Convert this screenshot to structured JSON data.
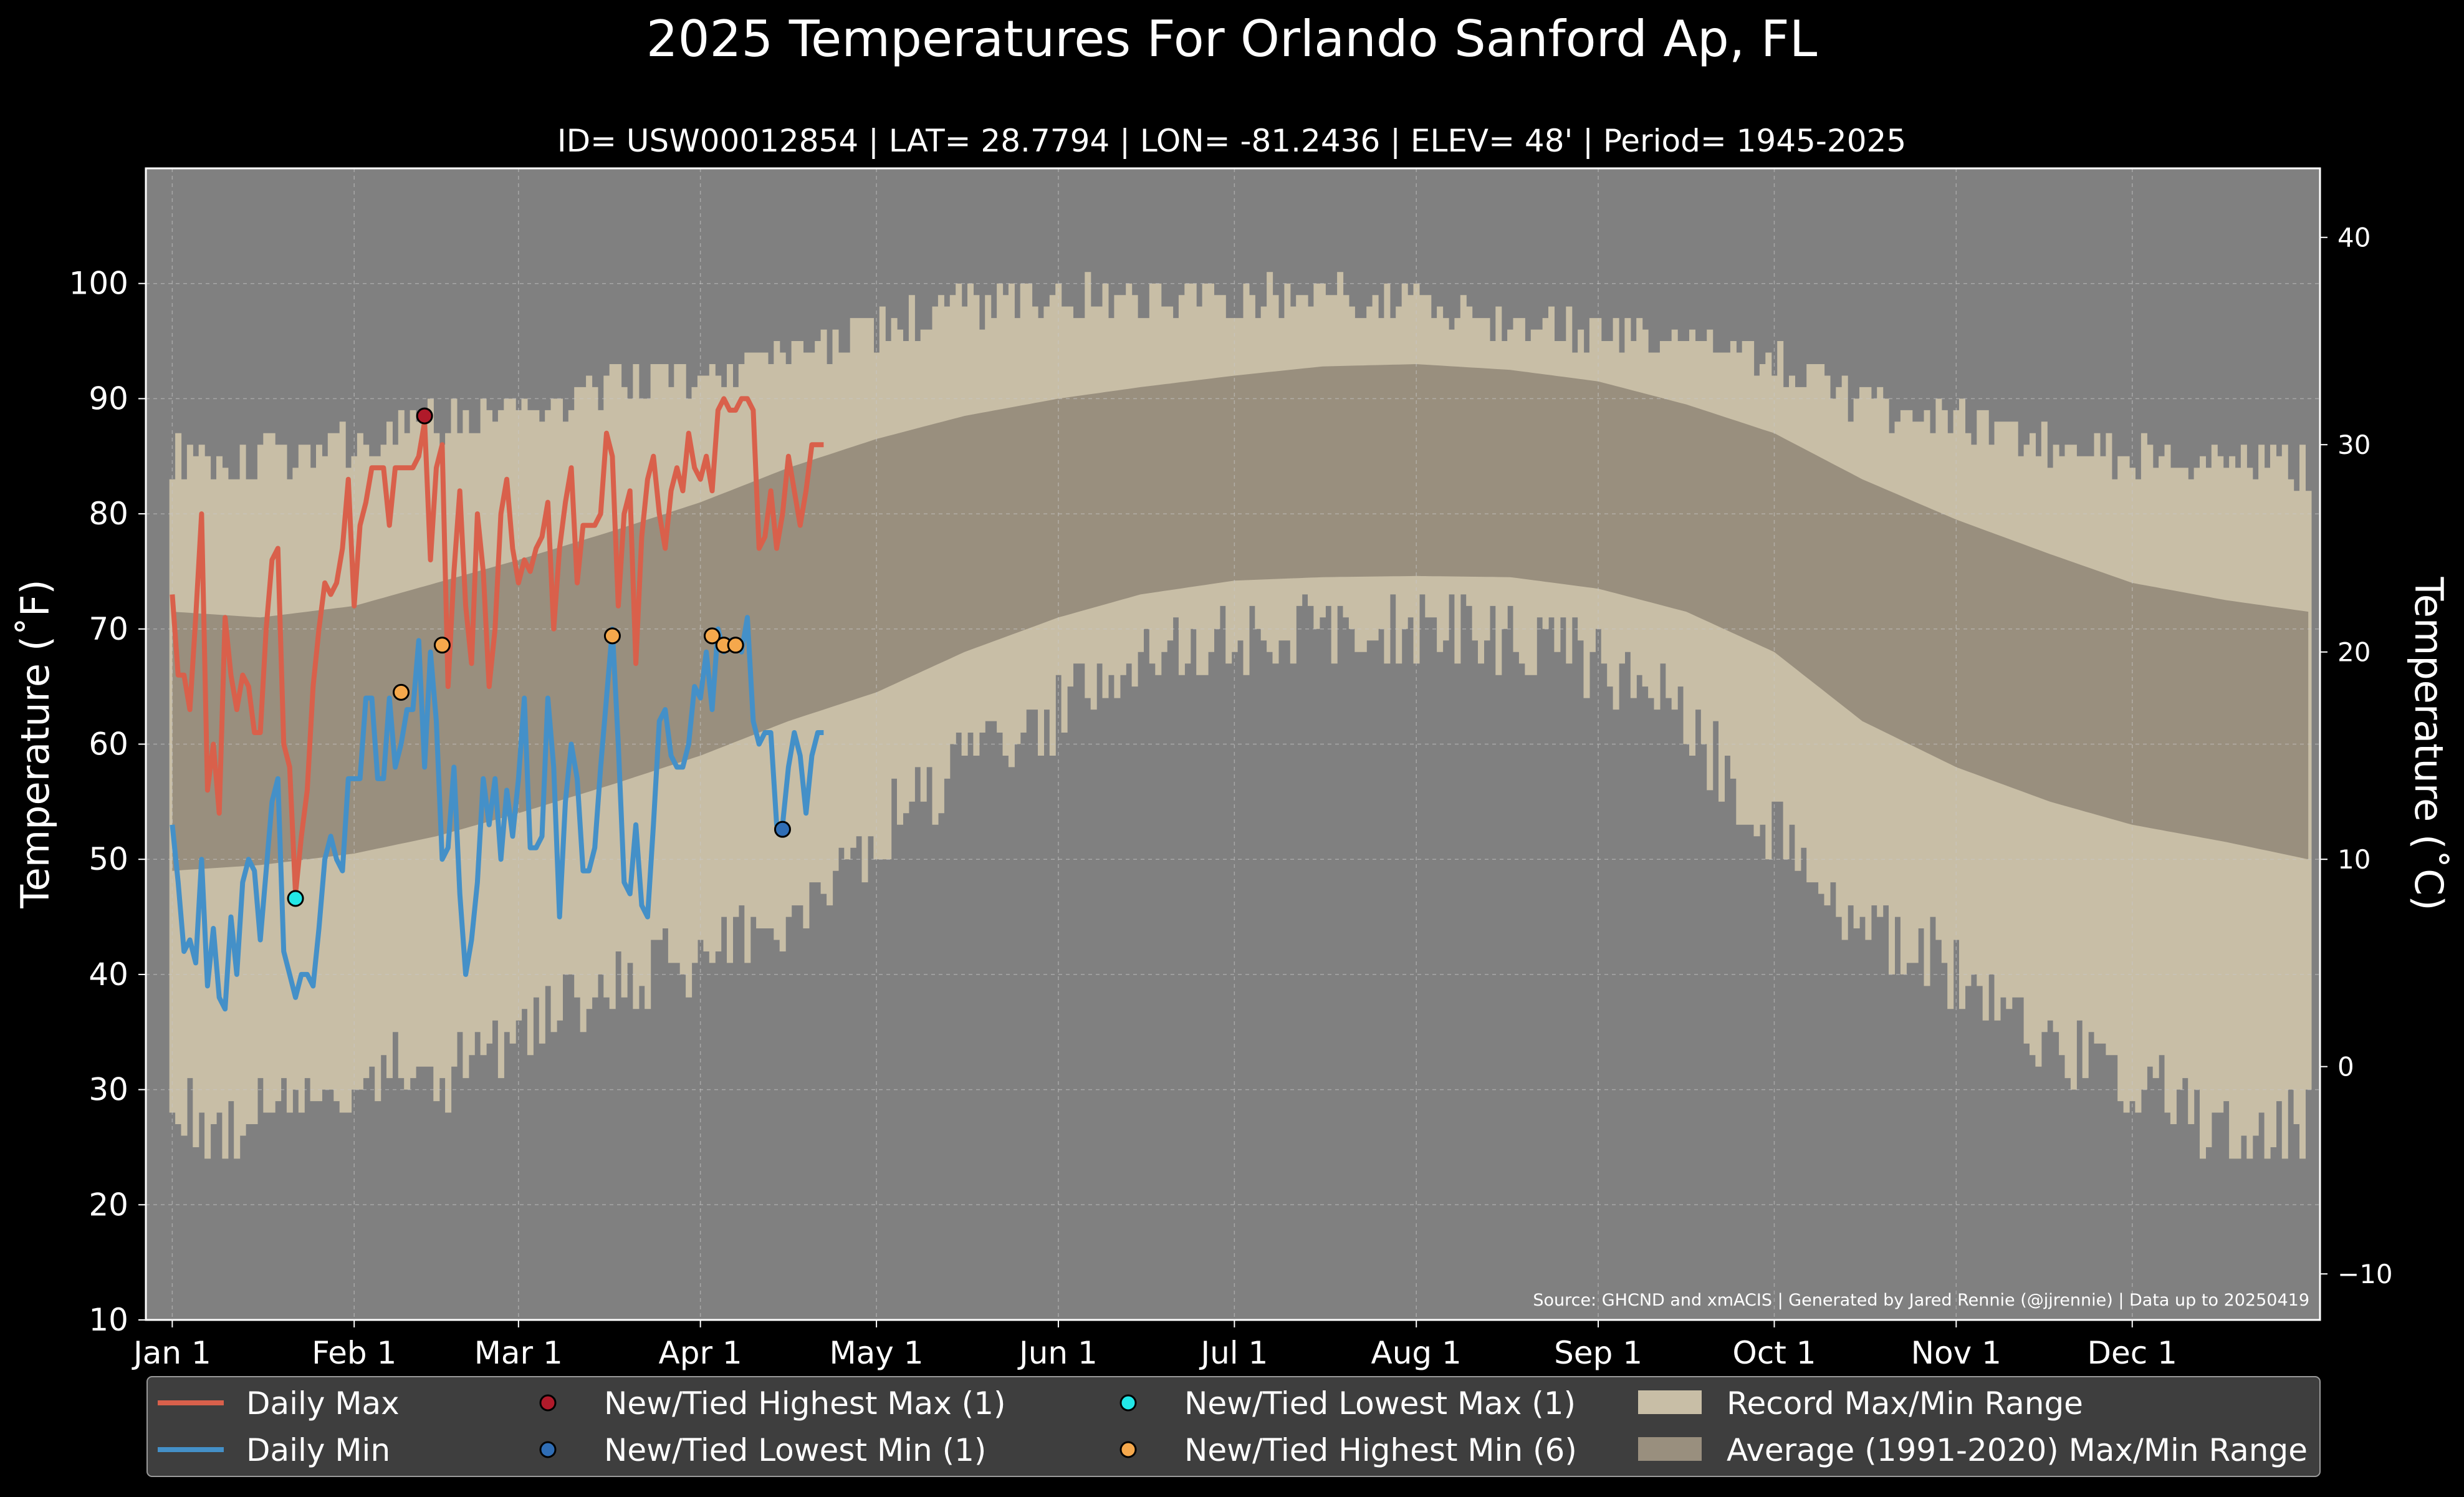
{
  "chart_data": {
    "type": "line",
    "title": "2025 Temperatures For Orlando Sanford Ap, FL",
    "subtitle": "ID= USW00012854 | LAT= 28.7794 | LON= -81.2436 | ELEV= 48' | Period= 1945-2025",
    "ylabel": "Temperature ($^\\circ$F)",
    "ylabel_display": "Temperature (˚F)",
    "ylabel_right": "Temperature (˚C)",
    "source": "Source: GHCND and xmACIS | Generated by Jared Rennie (@jjrennie) | Data up to 20250419",
    "ylim": [
      10,
      110
    ],
    "ylim_right_c": [
      -12.22,
      43.33
    ],
    "yticks": [
      10,
      20,
      30,
      40,
      50,
      60,
      70,
      80,
      90,
      100
    ],
    "yticks_right": [
      -10,
      0,
      10,
      20,
      30,
      40
    ],
    "x_ticks": [
      {
        "label": "Jan 1",
        "day": 0
      },
      {
        "label": "Feb 1",
        "day": 31
      },
      {
        "label": "Mar 1",
        "day": 59
      },
      {
        "label": "Apr 1",
        "day": 90
      },
      {
        "label": "May 1",
        "day": 120
      },
      {
        "label": "Jun 1",
        "day": 151
      },
      {
        "label": "Jul 1",
        "day": 181
      },
      {
        "label": "Aug 1",
        "day": 212
      },
      {
        "label": "Sep 1",
        "day": 243
      },
      {
        "label": "Oct 1",
        "day": 273
      },
      {
        "label": "Nov 1",
        "day": 304
      },
      {
        "label": "Dec 1",
        "day": 334
      }
    ],
    "xlim_days": [
      -4.5,
      366
    ],
    "grid": true,
    "colors": {
      "background": "#000000",
      "plot_bg": "#808080",
      "record_band": "#c8bea6",
      "normal_band": "#998f7e",
      "daily_max": "#d9604b",
      "daily_min": "#4490c8",
      "highest_max": "#b01a2a",
      "lowest_min": "#2f6db5",
      "lowest_max": "#22e7e7",
      "highest_min": "#f5a84c"
    },
    "record_max_anchors": [
      {
        "day": 0,
        "value": 85
      },
      {
        "day": 10,
        "value": 84
      },
      {
        "day": 20,
        "value": 85
      },
      {
        "day": 31,
        "value": 86
      },
      {
        "day": 45,
        "value": 88
      },
      {
        "day": 59,
        "value": 89
      },
      {
        "day": 75,
        "value": 91
      },
      {
        "day": 90,
        "value": 92
      },
      {
        "day": 105,
        "value": 94
      },
      {
        "day": 120,
        "value": 96
      },
      {
        "day": 135,
        "value": 98
      },
      {
        "day": 151,
        "value": 99
      },
      {
        "day": 165,
        "value": 99
      },
      {
        "day": 181,
        "value": 99
      },
      {
        "day": 196,
        "value": 99
      },
      {
        "day": 212,
        "value": 98
      },
      {
        "day": 228,
        "value": 97
      },
      {
        "day": 243,
        "value": 96
      },
      {
        "day": 258,
        "value": 95
      },
      {
        "day": 273,
        "value": 93
      },
      {
        "day": 288,
        "value": 90
      },
      {
        "day": 304,
        "value": 88
      },
      {
        "day": 320,
        "value": 86
      },
      {
        "day": 334,
        "value": 85
      },
      {
        "day": 350,
        "value": 85
      },
      {
        "day": 364,
        "value": 84
      }
    ],
    "record_min_anchors": [
      {
        "day": 0,
        "value": 29
      },
      {
        "day": 10,
        "value": 27
      },
      {
        "day": 20,
        "value": 28
      },
      {
        "day": 31,
        "value": 32
      },
      {
        "day": 45,
        "value": 31
      },
      {
        "day": 59,
        "value": 35
      },
      {
        "day": 75,
        "value": 38
      },
      {
        "day": 90,
        "value": 42
      },
      {
        "day": 105,
        "value": 45
      },
      {
        "day": 120,
        "value": 52
      },
      {
        "day": 135,
        "value": 58
      },
      {
        "day": 151,
        "value": 63
      },
      {
        "day": 165,
        "value": 67
      },
      {
        "day": 181,
        "value": 69
      },
      {
        "day": 196,
        "value": 70
      },
      {
        "day": 212,
        "value": 70
      },
      {
        "day": 228,
        "value": 69
      },
      {
        "day": 243,
        "value": 67
      },
      {
        "day": 258,
        "value": 62
      },
      {
        "day": 273,
        "value": 52
      },
      {
        "day": 288,
        "value": 45
      },
      {
        "day": 304,
        "value": 40
      },
      {
        "day": 320,
        "value": 34
      },
      {
        "day": 334,
        "value": 30
      },
      {
        "day": 350,
        "value": 27
      },
      {
        "day": 364,
        "value": 27
      }
    ],
    "normal_max_anchors": [
      {
        "day": 0,
        "value": 71.5
      },
      {
        "day": 15,
        "value": 71
      },
      {
        "day": 31,
        "value": 72
      },
      {
        "day": 45,
        "value": 74
      },
      {
        "day": 59,
        "value": 76
      },
      {
        "day": 75,
        "value": 78.5
      },
      {
        "day": 90,
        "value": 81
      },
      {
        "day": 105,
        "value": 84
      },
      {
        "day": 120,
        "value": 86.5
      },
      {
        "day": 135,
        "value": 88.5
      },
      {
        "day": 151,
        "value": 90
      },
      {
        "day": 165,
        "value": 91
      },
      {
        "day": 181,
        "value": 92
      },
      {
        "day": 196,
        "value": 92.8
      },
      {
        "day": 212,
        "value": 93
      },
      {
        "day": 228,
        "value": 92.5
      },
      {
        "day": 243,
        "value": 91.5
      },
      {
        "day": 258,
        "value": 89.5
      },
      {
        "day": 273,
        "value": 87
      },
      {
        "day": 288,
        "value": 83
      },
      {
        "day": 304,
        "value": 79.5
      },
      {
        "day": 320,
        "value": 76.5
      },
      {
        "day": 334,
        "value": 74
      },
      {
        "day": 350,
        "value": 72.5
      },
      {
        "day": 364,
        "value": 71.5
      }
    ],
    "normal_min_anchors": [
      {
        "day": 0,
        "value": 49
      },
      {
        "day": 15,
        "value": 49.5
      },
      {
        "day": 31,
        "value": 50.5
      },
      {
        "day": 45,
        "value": 52
      },
      {
        "day": 59,
        "value": 54
      },
      {
        "day": 75,
        "value": 56.5
      },
      {
        "day": 90,
        "value": 59
      },
      {
        "day": 105,
        "value": 62
      },
      {
        "day": 120,
        "value": 64.5
      },
      {
        "day": 135,
        "value": 68
      },
      {
        "day": 151,
        "value": 71
      },
      {
        "day": 165,
        "value": 73
      },
      {
        "day": 181,
        "value": 74.2
      },
      {
        "day": 196,
        "value": 74.5
      },
      {
        "day": 212,
        "value": 74.6
      },
      {
        "day": 228,
        "value": 74.5
      },
      {
        "day": 243,
        "value": 73.5
      },
      {
        "day": 258,
        "value": 71.5
      },
      {
        "day": 273,
        "value": 68
      },
      {
        "day": 288,
        "value": 62
      },
      {
        "day": 304,
        "value": 58
      },
      {
        "day": 320,
        "value": 55
      },
      {
        "day": 334,
        "value": 53
      },
      {
        "day": 350,
        "value": 51.5
      },
      {
        "day": 364,
        "value": 50
      }
    ],
    "series": [
      {
        "name": "Daily Max",
        "values": [
          73,
          66,
          66,
          63,
          71,
          80,
          56,
          60,
          54,
          71,
          66,
          63,
          66,
          65,
          61,
          61,
          70,
          76,
          77,
          60,
          58,
          47,
          52,
          56,
          65,
          70,
          74,
          73,
          74,
          77,
          83,
          72,
          79,
          81,
          84,
          84,
          84,
          79,
          84,
          84,
          84,
          84,
          85,
          88,
          76,
          84,
          86,
          65,
          75,
          82,
          72,
          67,
          80,
          75,
          65,
          70,
          80,
          83,
          77,
          74,
          76,
          75,
          77,
          78,
          81,
          70,
          77,
          81,
          84,
          74,
          79,
          79,
          79,
          80,
          87,
          85,
          72,
          80,
          82,
          67,
          78,
          83,
          85,
          80,
          77,
          82,
          84,
          82,
          87,
          84,
          83,
          85,
          82,
          89,
          90,
          89,
          89,
          90,
          90,
          89,
          77,
          78,
          82,
          77,
          80,
          85,
          82,
          79,
          82,
          86,
          86,
          86
        ]
      },
      {
        "name": "Daily Min",
        "values": [
          53,
          48,
          42,
          43,
          41,
          50,
          39,
          44,
          38,
          37,
          45,
          40,
          48,
          50,
          49,
          43,
          49,
          55,
          57,
          42,
          40,
          38,
          40,
          40,
          39,
          44,
          50,
          52,
          50,
          49,
          57,
          57,
          57,
          64,
          64,
          57,
          57,
          64,
          58,
          60,
          63,
          63,
          69,
          58,
          68,
          62,
          50,
          51,
          58,
          47,
          40,
          43,
          48,
          57,
          53,
          57,
          50,
          56,
          52,
          57,
          64,
          51,
          51,
          52,
          64,
          58,
          45,
          55,
          60,
          57,
          49,
          49,
          51,
          58,
          64,
          70,
          60,
          48,
          47,
          53,
          46,
          45,
          53,
          62,
          63,
          59,
          58,
          58,
          60,
          65,
          64,
          68,
          63,
          70,
          68,
          69,
          69,
          68,
          71,
          62,
          60,
          61,
          61,
          53,
          53,
          58,
          61,
          59,
          54,
          59,
          61,
          61
        ]
      }
    ],
    "records": [
      {
        "type": "highest_max",
        "day": 43,
        "value": 88.5
      },
      {
        "type": "lowest_max",
        "day": 21,
        "value": 46.6
      },
      {
        "type": "lowest_min",
        "day": 104,
        "value": 52.6
      },
      {
        "type": "highest_min",
        "day": 39,
        "value": 64.5
      },
      {
        "type": "highest_min",
        "day": 46,
        "value": 68.6
      },
      {
        "type": "highest_min",
        "day": 75,
        "value": 69.4
      },
      {
        "type": "highest_min",
        "day": 92,
        "value": 69.4
      },
      {
        "type": "highest_min",
        "day": 94,
        "value": 68.6
      },
      {
        "type": "highest_min",
        "day": 96,
        "value": 68.6
      }
    ],
    "legend": {
      "placement": "bottom",
      "items": [
        {
          "kind": "line",
          "color_key": "daily_max",
          "label": "Daily Max"
        },
        {
          "kind": "line",
          "color_key": "daily_min",
          "label": "Daily Min"
        },
        {
          "kind": "dot",
          "color_key": "highest_max",
          "label": "New/Tied Highest Max (1)"
        },
        {
          "kind": "dot",
          "color_key": "lowest_min",
          "label": "New/Tied Lowest Min (1)"
        },
        {
          "kind": "dot",
          "color_key": "lowest_max",
          "label": "New/Tied Lowest Max (1)"
        },
        {
          "kind": "dot",
          "color_key": "highest_min",
          "label": "New/Tied Highest Min (6)"
        },
        {
          "kind": "patch",
          "color_key": "record_band",
          "label": "Record Max/Min Range"
        },
        {
          "kind": "patch",
          "color_key": "normal_band",
          "label": "Average (1991-2020) Max/Min Range"
        }
      ]
    }
  }
}
